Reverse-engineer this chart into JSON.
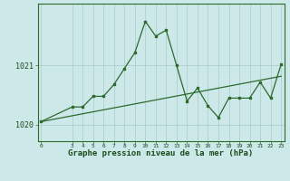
{
  "hours": [
    0,
    3,
    4,
    5,
    6,
    7,
    8,
    9,
    10,
    11,
    12,
    13,
    14,
    15,
    16,
    17,
    18,
    19,
    20,
    21,
    22,
    23
  ],
  "pressure": [
    1020.05,
    1020.3,
    1020.3,
    1020.48,
    1020.48,
    1020.68,
    1020.95,
    1021.22,
    1021.75,
    1021.5,
    1021.6,
    1021.0,
    1020.4,
    1020.62,
    1020.32,
    1020.12,
    1020.45,
    1020.45,
    1020.45,
    1020.72,
    1020.45,
    1021.02
  ],
  "trend_x": [
    0,
    23
  ],
  "trend_y": [
    1020.05,
    1020.82
  ],
  "line_color": "#2d6a2d",
  "bg_color": "#cce8e8",
  "grid_color": "#aacccc",
  "ylabel_ticks": [
    1020,
    1021
  ],
  "xtick_labels": [
    "0",
    "3",
    "4",
    "5",
    "6",
    "7",
    "8",
    "9",
    "10",
    "11",
    "12",
    "13",
    "14",
    "15",
    "16",
    "17",
    "18",
    "19",
    "20",
    "21",
    "22",
    "23"
  ],
  "xtick_positions": [
    0,
    3,
    4,
    5,
    6,
    7,
    8,
    9,
    10,
    11,
    12,
    13,
    14,
    15,
    16,
    17,
    18,
    19,
    20,
    21,
    22,
    23
  ],
  "xlabel": "Graphe pression niveau de la mer (hPa)",
  "ymin": 1019.72,
  "ymax": 1022.05,
  "label_color": "#1a4d1a",
  "axis_color": "#2d6a2d"
}
